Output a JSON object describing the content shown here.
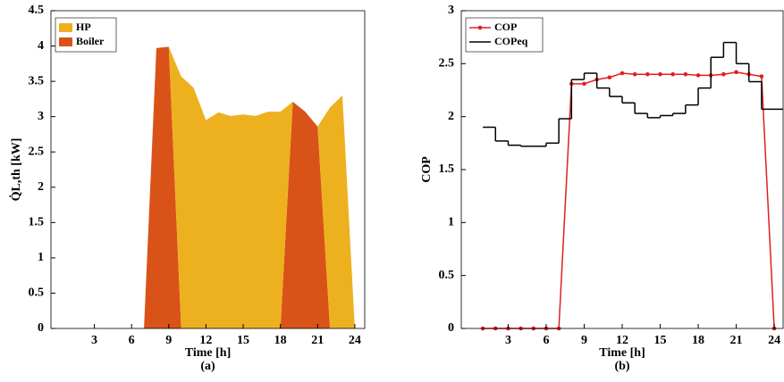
{
  "chart_data": [
    {
      "type": "area",
      "ylabel": "Q̇L,th [kW]",
      "xlabel": "Time [h]",
      "caption": "(a)",
      "x": [
        1,
        2,
        3,
        4,
        5,
        6,
        7,
        8,
        9,
        10,
        11,
        12,
        13,
        14,
        15,
        16,
        17,
        18,
        19,
        20,
        21,
        22,
        23,
        24
      ],
      "series": [
        {
          "name": "HP",
          "color": "#edb120",
          "values": [
            0,
            0,
            0,
            0,
            0,
            0,
            0,
            0,
            0,
            3.57,
            3.41,
            2.95,
            3.06,
            3.01,
            3.03,
            3.01,
            3.07,
            3.07,
            0,
            0,
            0,
            3.13,
            3.3,
            0
          ]
        },
        {
          "name": "Boiler",
          "color": "#d95319",
          "values": [
            0,
            0,
            0,
            0,
            0,
            0,
            0,
            3.97,
            3.99,
            0,
            0,
            0,
            0,
            0,
            0,
            0,
            0,
            0,
            3.21,
            3.07,
            2.86,
            0,
            0,
            0
          ]
        }
      ],
      "stack_order": [
        "Boiler",
        "HP"
      ],
      "xlim": [
        -0.5,
        24.8
      ],
      "ylim": [
        0,
        4.5
      ],
      "xticks": [
        3,
        6,
        9,
        12,
        15,
        18,
        21,
        24
      ],
      "yticks": [
        0,
        0.5,
        1,
        1.5,
        2,
        2.5,
        3,
        3.5,
        4,
        4.5
      ],
      "legend": "upper-left"
    },
    {
      "type": "line",
      "ylabel": "COP",
      "xlabel": "Time [h]",
      "caption": "(b)",
      "x": [
        1,
        2,
        3,
        4,
        5,
        6,
        7,
        8,
        9,
        10,
        11,
        12,
        13,
        14,
        15,
        16,
        17,
        18,
        19,
        20,
        21,
        22,
        23,
        24
      ],
      "series": [
        {
          "name": "COP",
          "color": "#e02020",
          "marker": "o",
          "drawstyle": "default",
          "values": [
            0,
            0,
            0,
            0,
            0,
            0,
            0,
            2.31,
            2.31,
            2.35,
            2.37,
            2.41,
            2.4,
            2.4,
            2.4,
            2.4,
            2.4,
            2.39,
            2.39,
            2.4,
            2.42,
            2.4,
            2.38,
            0
          ]
        },
        {
          "name": "COPeq",
          "color": "#000000",
          "marker": "none",
          "drawstyle": "steps-post",
          "values": [
            1.9,
            1.77,
            1.73,
            1.72,
            1.72,
            1.75,
            1.98,
            2.35,
            2.41,
            2.27,
            2.19,
            2.13,
            2.03,
            1.99,
            2.01,
            2.03,
            2.11,
            2.27,
            2.56,
            2.7,
            2.5,
            2.33,
            2.07,
            2.07
          ]
        }
      ],
      "xlim": [
        -0.7,
        24.7
      ],
      "ylim": [
        0,
        3
      ],
      "xticks": [
        3,
        6,
        9,
        12,
        15,
        18,
        21,
        24
      ],
      "yticks": [
        0,
        0.5,
        1,
        1.5,
        2,
        2.5,
        3
      ],
      "legend": "upper-left"
    }
  ]
}
